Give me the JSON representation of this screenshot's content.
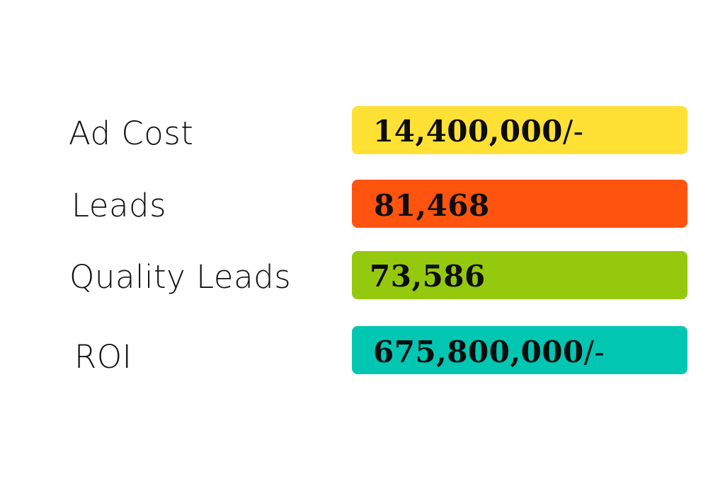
{
  "metrics": [
    {
      "label": "Ad Cost",
      "value": "14,400,000",
      "suffix": "/-",
      "color": "#FFE135"
    },
    {
      "label": "Leads",
      "value": "81,468",
      "suffix": "",
      "color": "#FF5410"
    },
    {
      "label": "Quality Leads",
      "value": "73,586",
      "suffix": "",
      "color": "#94C90E"
    },
    {
      "label": "ROI",
      "value": "675,800,000",
      "suffix": "/-",
      "color": "#00C6B2"
    }
  ]
}
